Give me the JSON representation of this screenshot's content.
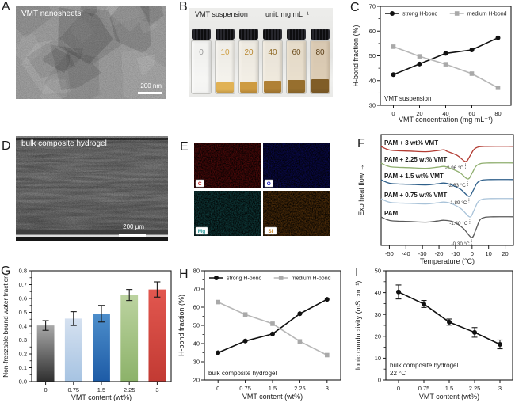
{
  "panels": {
    "a": {
      "letter": "A",
      "overlay": "VMT nanosheets",
      "scalebar": "200 nm"
    },
    "b": {
      "letter": "B",
      "title": "VMT suspension",
      "unit": "unit: mg mL⁻¹",
      "vials": [
        {
          "label": "0",
          "label_color": "#9a9a9a",
          "liquid": "none",
          "liquid_h": 0,
          "tint_color": "#c8b488",
          "tint": 0.0
        },
        {
          "label": "10",
          "label_color": "#cfa045",
          "liquid": "#e2b253",
          "liquid_h": 13,
          "tint_color": "#d8b878",
          "tint": 0.06
        },
        {
          "label": "20",
          "label_color": "#b8862f",
          "liquid": "#cf9a3e",
          "liquid_h": 14,
          "tint_color": "#cfa760",
          "tint": 0.1
        },
        {
          "label": "40",
          "label_color": "#8f6a25",
          "liquid": "#ad7d31",
          "liquid_h": 15,
          "tint_color": "#c49a52",
          "tint": 0.14
        },
        {
          "label": "60",
          "label_color": "#6f5020",
          "liquid": "#8d6728",
          "liquid_h": 16,
          "tint_color": "#b98c45",
          "tint": 0.22
        },
        {
          "label": "80",
          "label_color": "#5c4019",
          "liquid": "#6b4e1e",
          "liquid_h": 17,
          "tint_color": "#a97c3a",
          "tint": 0.34
        }
      ]
    },
    "c": {
      "letter": "C"
    },
    "d": {
      "letter": "D",
      "overlay": "bulk composite hydrogel",
      "scalebar": "200 μm"
    },
    "e": {
      "letter": "E",
      "maps": [
        {
          "element": "C",
          "color": "#c62020"
        },
        {
          "element": "O",
          "color": "#2020c6"
        },
        {
          "element": "Mg",
          "color": "#2f9d9d"
        },
        {
          "element": "Si",
          "color": "#c8821e"
        }
      ]
    },
    "f": {
      "letter": "F"
    },
    "g": {
      "letter": "G"
    },
    "h": {
      "letter": "H"
    },
    "i": {
      "letter": "I"
    }
  },
  "chart_data": [
    {
      "panel": "c",
      "type": "line",
      "categories": [
        "0",
        "20",
        "40",
        "60",
        "80"
      ],
      "xlabel": "VMT concentration (mg mL⁻¹)",
      "ylabel": "H-bond fraction (%)",
      "ylim": [
        30,
        70
      ],
      "yticks": [
        30,
        40,
        50,
        60,
        70
      ],
      "ytick_decimals": 0,
      "legend_position": "top",
      "annotation": [
        "VMT suspension"
      ],
      "series": [
        {
          "name": "strong H-bond",
          "color": "#111111",
          "line_color": "#111111",
          "marker": "circle",
          "values": [
            42.4,
            46.7,
            51.0,
            52.4,
            57.3
          ]
        },
        {
          "name": "medium H-bond",
          "color": "#a9a9a9",
          "line_color": "#b7b7b7",
          "marker": "square",
          "values": [
            53.7,
            49.8,
            46.6,
            42.8,
            37.1
          ]
        }
      ]
    },
    {
      "panel": "f",
      "type": "dsc",
      "xlabel": "Temperature (°C)",
      "ylabel": "Exo heat flow →",
      "xlim": [
        -55,
        25
      ],
      "xticks": [
        -50,
        -40,
        -30,
        -20,
        -10,
        0,
        10,
        20
      ],
      "curves": [
        {
          "name": "PAM + 3 wt% VMT",
          "color": "#b23b32",
          "peak": -3.96,
          "peak_label": "-3.96 °C"
        },
        {
          "name": "PAM + 2.25 wt% VMT",
          "color": "#8fae6e",
          "peak": -2.63,
          "peak_label": "-2.63 °C"
        },
        {
          "name": "PAM + 1.5 wt% VMT",
          "color": "#2e5f8a",
          "peak": -1.89,
          "peak_label": "-1.89 °C"
        },
        {
          "name": "PAM + 0.75 wt% VMT",
          "color": "#a9c3d9",
          "peak": -1.4,
          "peak_label": "-1.40 °C"
        },
        {
          "name": "PAM",
          "color": "#5a5a5a",
          "peak": -0.3,
          "peak_label": "-0.30 °C"
        }
      ]
    },
    {
      "panel": "g",
      "type": "bar",
      "categories": [
        "0",
        "0.75",
        "1.5",
        "2.25",
        "3"
      ],
      "values": [
        0.405,
        0.455,
        0.49,
        0.625,
        0.665
      ],
      "errors": [
        0.035,
        0.05,
        0.06,
        0.04,
        0.055
      ],
      "bar_colors": [
        [
          "#a8a8a8",
          "#2f2f2f"
        ],
        [
          "#d5e1f0",
          "#a6c3e2"
        ],
        [
          "#4d8ecb",
          "#1d5ba6"
        ],
        [
          "#bcd3a0",
          "#8cb269"
        ],
        [
          "#e2574f",
          "#c23a33"
        ]
      ],
      "xlabel": "VMT content (wt%)",
      "ylabel": "Non-freezable bound water fraction",
      "ylim": [
        0,
        0.8
      ],
      "yticks": [
        0,
        0.1,
        0.2,
        0.3,
        0.4,
        0.5,
        0.6,
        0.7,
        0.8
      ],
      "ytick_decimals": 1
    },
    {
      "panel": "h",
      "type": "line",
      "categories": [
        "0",
        "0.75",
        "1.5",
        "2.25",
        "3"
      ],
      "xlabel": "VMT content (wt%)",
      "ylabel": "H-bond fraction (%)",
      "ylim": [
        20,
        80
      ],
      "yticks": [
        20,
        30,
        40,
        50,
        60,
        70,
        80
      ],
      "ytick_decimals": 0,
      "legend_position": "top",
      "annotation": [
        "bulk composite hydrogel"
      ],
      "series": [
        {
          "name": "strong H-bond",
          "color": "#111111",
          "line_color": "#111111",
          "marker": "circle",
          "values": [
            35.0,
            41.4,
            45.3,
            56.4,
            64.3
          ]
        },
        {
          "name": "medium H-bond",
          "color": "#a9a9a9",
          "line_color": "#b7b7b7",
          "marker": "square",
          "values": [
            62.8,
            56.0,
            50.9,
            41.2,
            33.7
          ]
        }
      ]
    },
    {
      "panel": "i",
      "type": "line",
      "categories": [
        "0",
        "0.75",
        "1.5",
        "2.25",
        "3"
      ],
      "xlabel": "VMT content (wt%)",
      "ylabel": "Ionic conductivity (mS cm⁻¹)",
      "ylim": [
        0,
        50
      ],
      "yticks": [
        0,
        10,
        20,
        30,
        40,
        50
      ],
      "ytick_decimals": 0,
      "annotation": [
        "bulk composite hydrogel",
        "22 °C"
      ],
      "series": [
        {
          "name": "ionic conductivity",
          "color": "#111111",
          "line_color": "#111111",
          "marker": "circle",
          "values": [
            40.3,
            34.8,
            26.5,
            21.8,
            16.3
          ],
          "errors": [
            3.2,
            1.6,
            1.4,
            2.2,
            2.0
          ]
        }
      ]
    }
  ]
}
